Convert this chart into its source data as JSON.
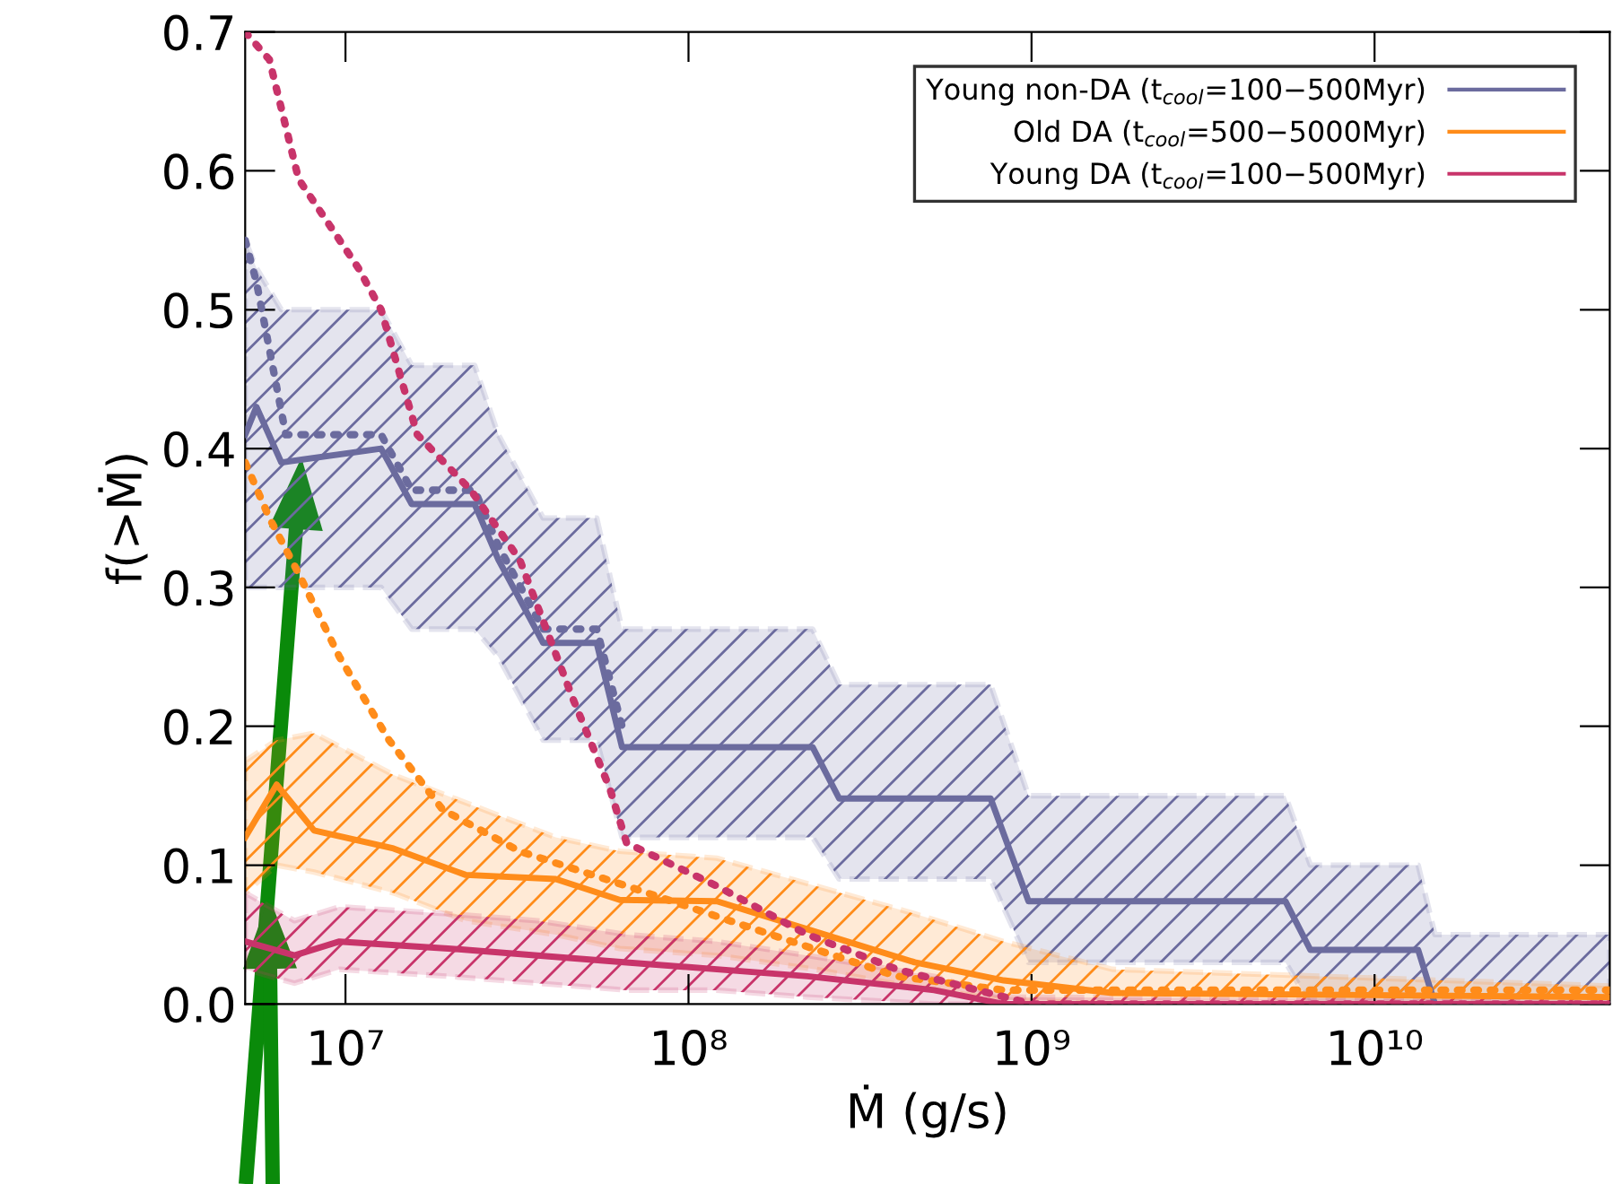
{
  "chart_data": {
    "type": "line",
    "xlabel": "Ṁ (g/s)",
    "ylabel": "f(>Ṁ)",
    "log": "x",
    "xlim": [
      5100000.0,
      48500000000.0
    ],
    "xticks": [
      {
        "value": 10000000.0,
        "label": "10⁷"
      },
      {
        "value": 100000000.0,
        "label": "10⁸"
      },
      {
        "value": 1000000000.0,
        "label": "10⁹"
      },
      {
        "value": 10000000000.0,
        "label": "10¹⁰"
      }
    ],
    "ylim": [
      0,
      0.7
    ],
    "yticks": [
      {
        "value": 0,
        "label": "0.0"
      },
      0.1,
      0.2,
      0.3,
      0.4,
      0.5,
      0.6,
      0.7
    ],
    "grid": false,
    "legend": "top right",
    "marker": "none",
    "series": [
      {
        "name": "Young non-DA (t$_{cool}$=100−500Myr)",
        "color": "#6b6b9e",
        "line_style": "solid",
        "x": [
          5100000.0,
          5500000.0,
          6500000.0,
          12700000.0,
          15600000.0,
          23800000.0,
          27900000.0,
          37700000.0,
          54000000.0,
          64000000.0,
          230000000.0,
          275000000.0,
          760000000.0,
          980000000.0,
          5500000000.0,
          6500000000.0,
          13400000000.0,
          15000000000.0,
          48500000000.0
        ],
        "values": [
          0.41,
          0.43,
          0.39,
          0.4,
          0.36,
          0.36,
          0.32,
          0.26,
          0.26,
          0.185,
          0.185,
          0.148,
          0.148,
          0.074,
          0.074,
          0.039,
          0.039,
          0.0,
          0.0
        ],
        "upper": [
          0.55,
          0.53,
          0.5,
          0.5,
          0.46,
          0.46,
          0.41,
          0.35,
          0.35,
          0.27,
          0.27,
          0.23,
          0.23,
          0.15,
          0.15,
          0.1,
          0.1,
          0.05,
          0.05
        ],
        "lower": [
          0.3,
          0.3,
          0.3,
          0.3,
          0.27,
          0.27,
          0.25,
          0.19,
          0.19,
          0.12,
          0.12,
          0.09,
          0.09,
          0.03,
          0.03,
          0.0,
          0.0,
          0.0,
          0.0
        ]
      },
      {
        "name": "Old DA (t$_{cool}$=500−5000Myr)",
        "color": "#ff8c1a",
        "line_style": "solid",
        "x": [
          5100000.0,
          6300000.0,
          8100000.0,
          13800000.0,
          22400000.0,
          41000000.0,
          63000000.0,
          121000000.0,
          235000000.0,
          457000000.0,
          830000000.0,
          1720000000.0,
          48500000000.0
        ],
        "values": [
          0.12,
          0.158,
          0.125,
          0.112,
          0.093,
          0.09,
          0.075,
          0.074,
          0.052,
          0.03,
          0.017,
          0.008,
          0.005
        ],
        "upper": [
          0.175,
          0.19,
          0.195,
          0.165,
          0.145,
          0.12,
          0.11,
          0.105,
          0.085,
          0.065,
          0.045,
          0.025,
          0.013
        ],
        "lower": [
          0.08,
          0.1,
          0.095,
          0.08,
          0.06,
          0.05,
          0.04,
          0.035,
          0.025,
          0.012,
          0.003,
          0.0,
          0.0
        ]
      },
      {
        "name": "Young DA (t$_{cool}$=100−500Myr)",
        "color": "#c8346a",
        "line_style": "solid",
        "x": [
          5100000.0,
          7100000.0,
          9600000.0,
          19900000.0,
          36300000.0,
          66000000.0,
          121000000.0,
          222000000.0,
          520000000.0,
          830000000.0,
          48500000000.0
        ],
        "values": [
          0.045,
          0.035,
          0.045,
          0.04,
          0.035,
          0.03,
          0.025,
          0.02,
          0.01,
          0.0,
          0.0
        ],
        "upper": [
          0.08,
          0.06,
          0.07,
          0.065,
          0.06,
          0.05,
          0.045,
          0.035,
          0.02,
          0.005,
          0.003
        ],
        "lower": [
          0.025,
          0.015,
          0.025,
          0.02,
          0.015,
          0.01,
          0.01,
          0.005,
          0.0,
          0.0,
          0.0
        ]
      },
      {
        "color": "#6b6b9e",
        "line_style": "dotted",
        "x": [
          5100000.0,
          5500000.0,
          6700000.0,
          12700000.0,
          15600000.0,
          23800000.0,
          27900000.0,
          37700000.0,
          54000000.0,
          64000000.0
        ],
        "values": [
          0.55,
          0.52,
          0.41,
          0.41,
          0.37,
          0.37,
          0.33,
          0.27,
          0.27,
          0.2
        ]
      },
      {
        "color": "#ff8c1a",
        "line_style": "dotted",
        "x": [
          5100000.0,
          6000000.0,
          7300000.0,
          9600000.0,
          13400000.0,
          19200000.0,
          32200000.0,
          66000000.0,
          174000000.0,
          405000000.0,
          830000000.0,
          48500000000.0
        ],
        "values": [
          0.39,
          0.35,
          0.31,
          0.25,
          0.19,
          0.14,
          0.11,
          0.085,
          0.05,
          0.02,
          0.01,
          0.01
        ]
      },
      {
        "color": "#c8346a",
        "line_style": "dotted",
        "x": [
          5100000.0,
          6000000.0,
          7300000.0,
          10900000.0,
          12700000.0,
          16200000.0,
          23200000.0,
          32200000.0,
          46000000.0,
          59000000.0,
          66000000.0,
          121000000.0,
          222000000.0,
          405000000.0,
          1000000000.0,
          48500000000.0
        ],
        "values": [
          0.7,
          0.68,
          0.594,
          0.53,
          0.5,
          0.41,
          0.37,
          0.32,
          0.22,
          0.155,
          0.116,
          0.085,
          0.05,
          0.025,
          0.0,
          0.0
        ]
      }
    ]
  }
}
